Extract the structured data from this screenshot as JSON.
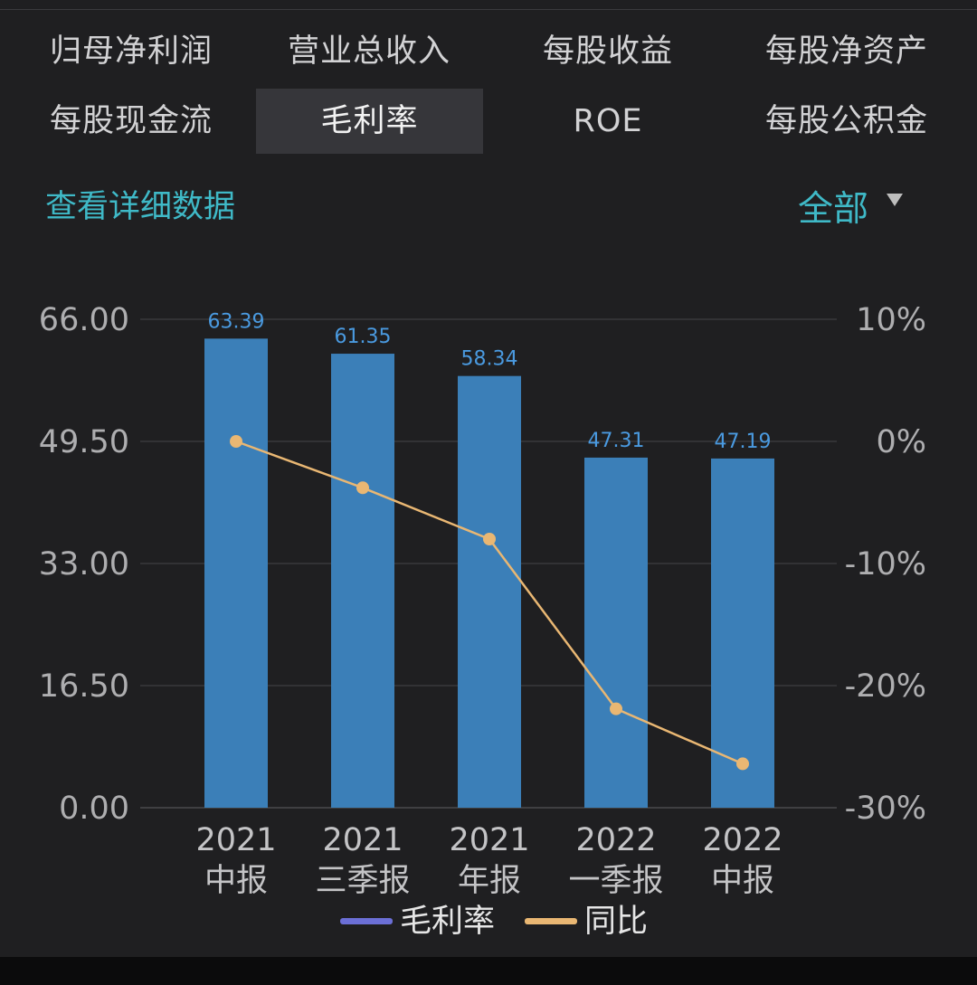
{
  "tabs": [
    {
      "label": "归母净利润"
    },
    {
      "label": "营业总收入"
    },
    {
      "label": "每股收益"
    },
    {
      "label": "每股净资产"
    },
    {
      "label": "每股现金流"
    },
    {
      "label": "毛利率"
    },
    {
      "label": "ROE"
    },
    {
      "label": "每股公积金"
    }
  ],
  "active_tab": "毛利率",
  "detail_link": "查看详细数据",
  "range_select": {
    "value": "全部"
  },
  "icons": {
    "dropdown": "caret-down-icon"
  },
  "colors": {
    "bar": "#3b7fb8",
    "line": "#e9b773",
    "accent": "#3fb9c7",
    "bar_label": "#4a9ae0",
    "legend_bar": "#6b6fd6"
  },
  "chart_data": {
    "type": "bar+line",
    "categories": [
      [
        "2021",
        "中报"
      ],
      [
        "2021",
        "三季报"
      ],
      [
        "2021",
        "年报"
      ],
      [
        "2022",
        "一季报"
      ],
      [
        "2022",
        "中报"
      ]
    ],
    "series": [
      {
        "name": "毛利率",
        "type": "bar",
        "axis": "left",
        "values": [
          63.39,
          61.35,
          58.34,
          47.31,
          47.19
        ],
        "labels": [
          "63.39",
          "61.35",
          "58.34",
          "47.31",
          "47.19"
        ]
      },
      {
        "name": "同比",
        "type": "line",
        "axis": "right",
        "values": [
          0.0,
          -3.8,
          -8.0,
          -21.9,
          -26.4
        ]
      }
    ],
    "left_axis": {
      "ticks": [
        "66.00",
        "49.50",
        "33.00",
        "16.50",
        "0.00"
      ],
      "tick_values": [
        66,
        49.5,
        33,
        16.5,
        0
      ],
      "ylim": [
        0,
        66
      ]
    },
    "right_axis": {
      "ticks": [
        "10%",
        "0%",
        "-10%",
        "-20%",
        "-30%"
      ],
      "tick_values": [
        10,
        0,
        -10,
        -20,
        -30
      ],
      "ylim": [
        -30,
        10
      ]
    },
    "grid": true,
    "legend": [
      "毛利率",
      "同比"
    ],
    "legend_position": "bottom"
  }
}
